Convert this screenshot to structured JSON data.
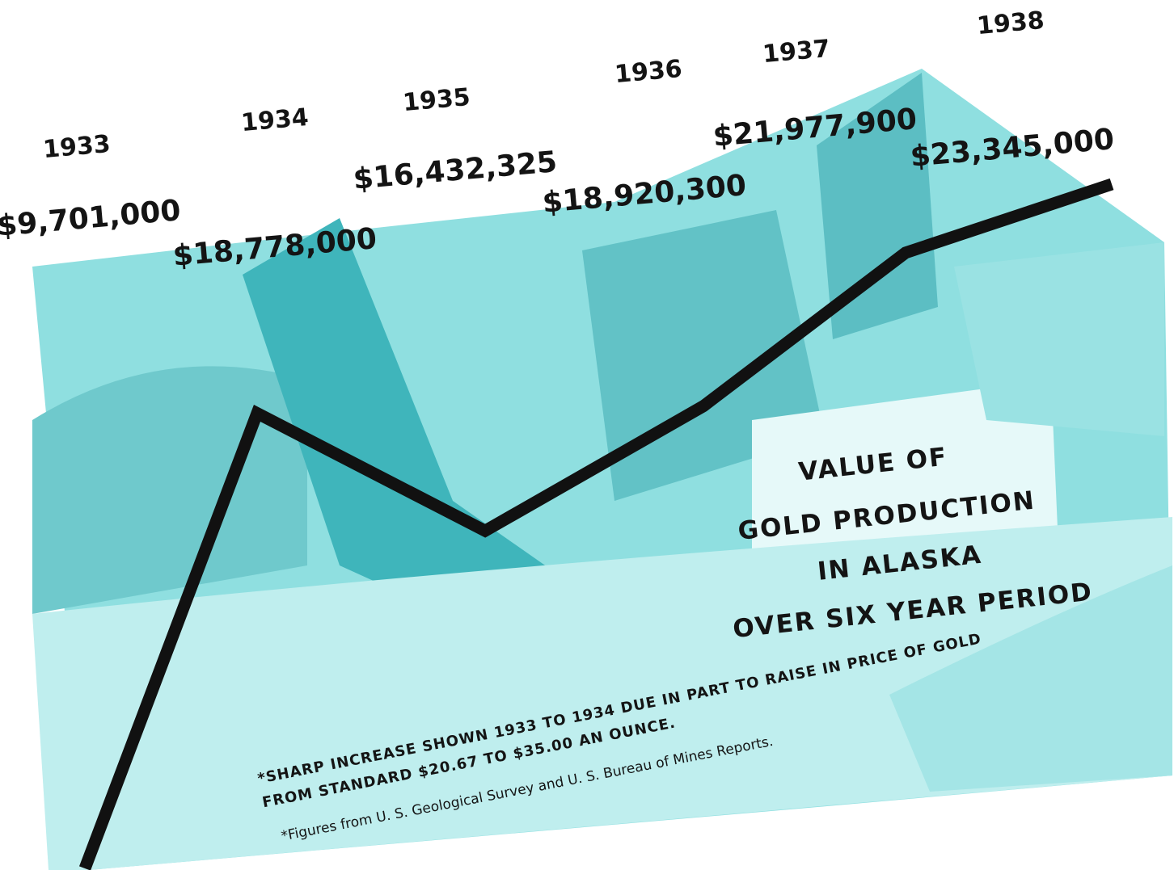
{
  "chart_data": {
    "type": "line",
    "title_lines": [
      "VALUE OF",
      "GOLD PRODUCTION",
      "IN ALASKA",
      "OVER SIX YEAR PERIOD"
    ],
    "notes": [
      "*SHARP INCREASE SHOWN 1933 TO 1934 DUE IN PART TO RAISE IN PRICE OF GOLD",
      "FROM STANDARD $20.67 TO $35.00 AN OUNCE.",
      "*Figures from U. S. Geological Survey and U. S. Bureau of Mines Reports."
    ],
    "categories": [
      "1933",
      "1934",
      "1935",
      "1936",
      "1937",
      "1938"
    ],
    "series": [
      {
        "color": "#111111",
        "values": [
          9701000,
          18778000,
          16432325,
          18920300,
          21977900,
          23345000
        ],
        "value_labels": [
          "$9,701,000",
          "$18,778,000",
          "$16,432,325",
          "$18,920,300",
          "$21,977,900",
          "$23,345,000"
        ]
      }
    ]
  }
}
